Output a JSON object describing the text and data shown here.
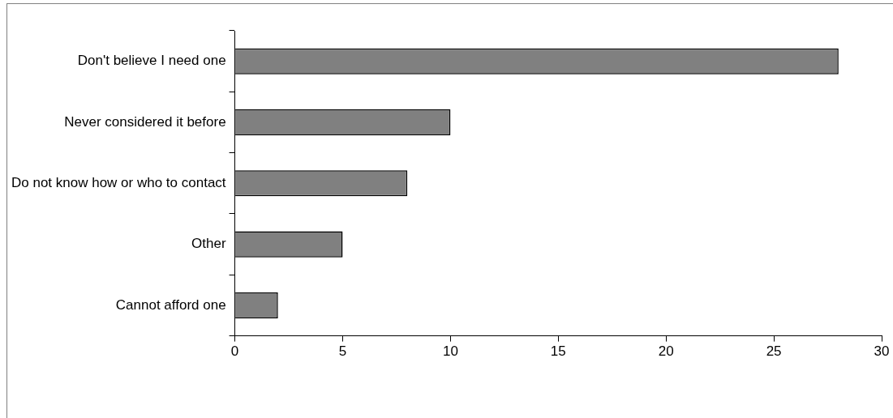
{
  "chart_data": {
    "type": "bar",
    "orientation": "horizontal",
    "categories": [
      "Don't believe I need one",
      "Never considered it before",
      "Do not know how or who to contact",
      "Other",
      "Cannot afford one"
    ],
    "values": [
      28,
      10,
      8,
      5,
      2
    ],
    "color": "#808080",
    "xlim": [
      0,
      30
    ],
    "xticks": [
      0,
      5,
      10,
      15,
      20,
      25,
      30
    ],
    "grid": false,
    "legend": false
  }
}
